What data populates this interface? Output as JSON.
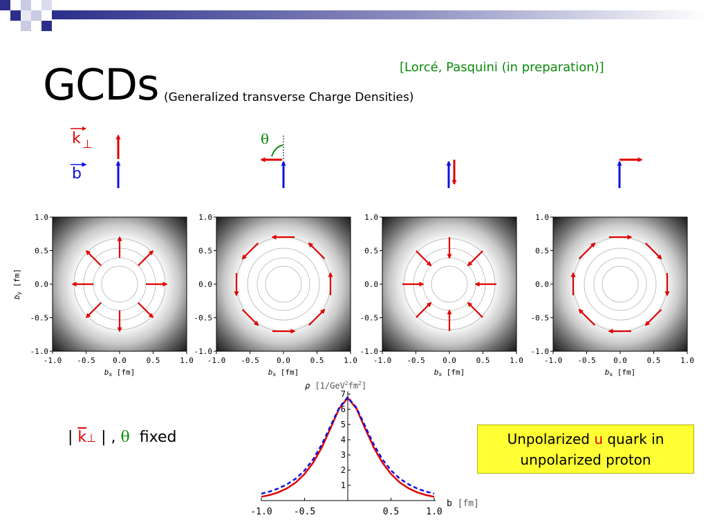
{
  "slide": {
    "title": "GCDs",
    "subtitle": "(Generalized transverse Charge Densities)",
    "citation": "[Lorcé, Pasquini (in preparation)]"
  },
  "legend": {
    "k_symbol": "k",
    "perp_symbol": "⊥",
    "b_symbol": "b",
    "theta_symbol": "θ"
  },
  "fixed_label": {
    "bar_left": "|",
    "k": "k",
    "perp": "⊥",
    "bar_right": "|",
    "comma": ",",
    "theta": "θ",
    "word": "fixed"
  },
  "note": {
    "line1_pre": "Unpolarized ",
    "quark": "u",
    "line1_post": " quark in",
    "line2": "unpolarized proton"
  },
  "colors": {
    "k_arrow": "#e00000",
    "b_arrow": "#1010e0",
    "theta_arc": "#0a8a0a",
    "note_bg": "#ffff33"
  },
  "density_panels": {
    "ticks": [
      "-1.0",
      "-0.5",
      "0.0",
      "0.5",
      "1.0"
    ],
    "xlabel": "b",
    "xlabel_sub": "x",
    "xlabel_unit": "[fm]",
    "ylabel": "b",
    "ylabel_sub": "y",
    "ylabel_unit": "[fm]",
    "panels": [
      {
        "k_direction": "parallel to b",
        "flow": "outward"
      },
      {
        "k_direction": "perpendicular-left of b",
        "flow": "counter-clockwise"
      },
      {
        "k_direction": "antiparallel to b",
        "flow": "inward"
      },
      {
        "k_direction": "perpendicular-right of b",
        "flow": "clockwise"
      }
    ]
  },
  "chart_data": {
    "type": "line",
    "title": "",
    "xlabel": "b",
    "xlabel_unit": "[fm]",
    "ylabel": "ρ",
    "ylabel_unit_text": "[1/GeV",
    "ylabel_unit_sup1": "2",
    "ylabel_unit_mid": "fm",
    "ylabel_unit_sup2": "2",
    "ylabel_unit_end": "]",
    "xlim": [
      -1.0,
      1.0
    ],
    "ylim": [
      0,
      7
    ],
    "x_ticks": [
      "-1.0",
      "-0.5",
      "0.5",
      "1.0"
    ],
    "x_tick_values": [
      -1.0,
      -0.5,
      0.5,
      1.0
    ],
    "y_ticks": [
      "1",
      "2",
      "3",
      "4",
      "5",
      "6",
      "7"
    ],
    "series": [
      {
        "style": "solid",
        "color": "#e00000",
        "x": [
          -1.0,
          -0.9,
          -0.8,
          -0.7,
          -0.6,
          -0.5,
          -0.4,
          -0.3,
          -0.2,
          -0.1,
          0.0,
          0.1,
          0.2,
          0.3,
          0.4,
          0.5,
          0.6,
          0.7,
          0.8,
          0.9,
          1.0
        ],
        "y": [
          0.25,
          0.37,
          0.55,
          0.82,
          1.2,
          1.75,
          2.5,
          3.5,
          4.75,
          6.05,
          6.75,
          6.05,
          4.75,
          3.5,
          2.5,
          1.75,
          1.2,
          0.82,
          0.55,
          0.37,
          0.25
        ]
      },
      {
        "style": "dashed",
        "color": "#1010e0",
        "x": [
          -1.0,
          -0.9,
          -0.8,
          -0.7,
          -0.6,
          -0.5,
          -0.4,
          -0.3,
          -0.2,
          -0.1,
          0.0,
          0.1,
          0.2,
          0.3,
          0.4,
          0.5,
          0.6,
          0.7,
          0.8,
          0.9,
          1.0
        ],
        "y": [
          0.45,
          0.6,
          0.8,
          1.08,
          1.45,
          1.98,
          2.72,
          3.7,
          4.9,
          6.1,
          6.8,
          6.1,
          4.9,
          3.7,
          2.72,
          1.98,
          1.45,
          1.08,
          0.8,
          0.6,
          0.45
        ]
      }
    ]
  }
}
